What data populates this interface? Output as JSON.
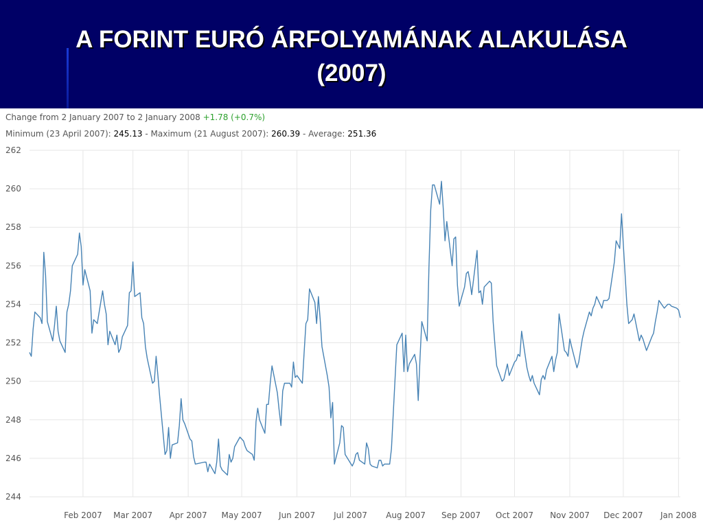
{
  "title": {
    "line1": "A FORINT EURÓ ÁRFOLYAMÁNAK ALAKULÁSA",
    "line2": "(2007)"
  },
  "summary": {
    "change_label": "Change from 2 January 2007 to 2 January 2008",
    "change_value": "+1.78 (+0.7%)",
    "min_label": "Minimum (23 April 2007):",
    "min_value": "245.13",
    "sep1": "-",
    "max_label": "Maximum (21 August 2007):",
    "max_value": "260.39",
    "sep2": "-",
    "avg_label": "Average:",
    "avg_value": "251.36"
  },
  "colors": {
    "title_bar": "#000066",
    "line": "#4682b4",
    "grid": "#e6e6e6",
    "positive": "#2ba02b"
  },
  "chart_data": {
    "type": "line",
    "xlabel": "",
    "ylabel": "",
    "ylim": [
      244,
      262
    ],
    "xlim": [
      "2007-01-02",
      "2008-01-02"
    ],
    "y_ticks": [
      244,
      246,
      248,
      250,
      252,
      254,
      256,
      258,
      260,
      262
    ],
    "x_ticks": [
      {
        "date": "2007-02-01",
        "label": "Feb 2007"
      },
      {
        "date": "2007-03-01",
        "label": "Mar 2007"
      },
      {
        "date": "2007-04-01",
        "label": "Apr 2007"
      },
      {
        "date": "2007-05-01",
        "label": "May 2007"
      },
      {
        "date": "2007-06-01",
        "label": "Jun 2007"
      },
      {
        "date": "2007-07-01",
        "label": "Jul 2007"
      },
      {
        "date": "2007-08-01",
        "label": "Aug 2007"
      },
      {
        "date": "2007-09-01",
        "label": "Sep 2007"
      },
      {
        "date": "2007-10-01",
        "label": "Oct 2007"
      },
      {
        "date": "2007-11-01",
        "label": "Nov 2007"
      },
      {
        "date": "2007-12-01",
        "label": "Dec 2007"
      },
      {
        "date": "2008-01-01",
        "label": "Jan 2008"
      }
    ],
    "grid": true,
    "series": [
      {
        "points": [
          [
            "2007-01-02",
            251.5
          ],
          [
            "2007-01-03",
            251.3
          ],
          [
            "2007-01-04",
            252.7
          ],
          [
            "2007-01-05",
            253.6
          ],
          [
            "2007-01-08",
            253.3
          ],
          [
            "2007-01-09",
            253.0
          ],
          [
            "2007-01-10",
            256.7
          ],
          [
            "2007-01-11",
            255.5
          ],
          [
            "2007-01-12",
            253.1
          ],
          [
            "2007-01-15",
            252.1
          ],
          [
            "2007-01-16",
            252.9
          ],
          [
            "2007-01-17",
            253.9
          ],
          [
            "2007-01-18",
            252.6
          ],
          [
            "2007-01-19",
            252.1
          ],
          [
            "2007-01-22",
            251.5
          ],
          [
            "2007-01-23",
            253.6
          ],
          [
            "2007-01-24",
            254.0
          ],
          [
            "2007-01-25",
            254.7
          ],
          [
            "2007-01-26",
            256.0
          ],
          [
            "2007-01-29",
            256.6
          ],
          [
            "2007-01-30",
            257.7
          ],
          [
            "2007-01-31",
            257.0
          ],
          [
            "2007-02-01",
            255.0
          ],
          [
            "2007-02-02",
            255.8
          ],
          [
            "2007-02-05",
            254.7
          ],
          [
            "2007-02-06",
            252.5
          ],
          [
            "2007-02-07",
            253.2
          ],
          [
            "2007-02-08",
            253.1
          ],
          [
            "2007-02-09",
            253.0
          ],
          [
            "2007-02-12",
            254.7
          ],
          [
            "2007-02-13",
            254.0
          ],
          [
            "2007-02-14",
            253.5
          ],
          [
            "2007-02-15",
            251.9
          ],
          [
            "2007-02-16",
            252.6
          ],
          [
            "2007-02-19",
            251.9
          ],
          [
            "2007-02-20",
            252.4
          ],
          [
            "2007-02-21",
            251.5
          ],
          [
            "2007-02-22",
            251.7
          ],
          [
            "2007-02-23",
            252.3
          ],
          [
            "2007-02-26",
            252.9
          ],
          [
            "2007-02-27",
            254.6
          ],
          [
            "2007-02-28",
            254.7
          ],
          [
            "2007-03-01",
            256.2
          ],
          [
            "2007-03-02",
            254.4
          ],
          [
            "2007-03-05",
            254.6
          ],
          [
            "2007-03-06",
            253.3
          ],
          [
            "2007-03-07",
            253.0
          ],
          [
            "2007-03-08",
            251.8
          ],
          [
            "2007-03-09",
            251.2
          ],
          [
            "2007-03-12",
            249.9
          ],
          [
            "2007-03-13",
            250.0
          ],
          [
            "2007-03-14",
            251.3
          ],
          [
            "2007-03-15",
            250.3
          ],
          [
            "2007-03-16",
            249.2
          ],
          [
            "2007-03-19",
            246.2
          ],
          [
            "2007-03-20",
            246.4
          ],
          [
            "2007-03-21",
            247.6
          ],
          [
            "2007-03-22",
            246.0
          ],
          [
            "2007-03-23",
            246.7
          ],
          [
            "2007-03-26",
            246.8
          ],
          [
            "2007-03-27",
            247.7
          ],
          [
            "2007-03-28",
            249.1
          ],
          [
            "2007-03-29",
            248.0
          ],
          [
            "2007-03-30",
            247.8
          ],
          [
            "2007-04-02",
            247.0
          ],
          [
            "2007-04-03",
            246.9
          ],
          [
            "2007-04-04",
            246.1
          ],
          [
            "2007-04-05",
            245.7
          ],
          [
            "2007-04-10",
            245.8
          ],
          [
            "2007-04-11",
            245.8
          ],
          [
            "2007-04-12",
            245.3
          ],
          [
            "2007-04-13",
            245.7
          ],
          [
            "2007-04-16",
            245.2
          ],
          [
            "2007-04-17",
            245.8
          ],
          [
            "2007-04-18",
            247.0
          ],
          [
            "2007-04-19",
            245.6
          ],
          [
            "2007-04-20",
            245.4
          ],
          [
            "2007-04-23",
            245.13
          ],
          [
            "2007-04-24",
            246.2
          ],
          [
            "2007-04-25",
            245.8
          ],
          [
            "2007-04-26",
            246.0
          ],
          [
            "2007-04-27",
            246.6
          ],
          [
            "2007-04-30",
            247.1
          ],
          [
            "2007-05-02",
            246.9
          ],
          [
            "2007-05-03",
            246.6
          ],
          [
            "2007-05-04",
            246.4
          ],
          [
            "2007-05-07",
            246.2
          ],
          [
            "2007-05-08",
            245.9
          ],
          [
            "2007-05-09",
            247.9
          ],
          [
            "2007-05-10",
            248.6
          ],
          [
            "2007-05-11",
            248.0
          ],
          [
            "2007-05-14",
            247.3
          ],
          [
            "2007-05-15",
            248.8
          ],
          [
            "2007-05-16",
            248.8
          ],
          [
            "2007-05-17",
            249.9
          ],
          [
            "2007-05-18",
            250.8
          ],
          [
            "2007-05-21",
            249.4
          ],
          [
            "2007-05-22",
            248.5
          ],
          [
            "2007-05-23",
            247.7
          ],
          [
            "2007-05-24",
            249.5
          ],
          [
            "2007-05-25",
            249.9
          ],
          [
            "2007-05-28",
            249.9
          ],
          [
            "2007-05-29",
            249.7
          ],
          [
            "2007-05-30",
            251.0
          ],
          [
            "2007-05-31",
            250.2
          ],
          [
            "2007-06-01",
            250.3
          ],
          [
            "2007-06-04",
            249.9
          ],
          [
            "2007-06-05",
            251.5
          ],
          [
            "2007-06-06",
            253.0
          ],
          [
            "2007-06-07",
            253.2
          ],
          [
            "2007-06-08",
            254.8
          ],
          [
            "2007-06-11",
            254.1
          ],
          [
            "2007-06-12",
            253.0
          ],
          [
            "2007-06-13",
            254.4
          ],
          [
            "2007-06-14",
            253.2
          ],
          [
            "2007-06-15",
            251.8
          ],
          [
            "2007-06-18",
            250.3
          ],
          [
            "2007-06-19",
            249.7
          ],
          [
            "2007-06-20",
            248.1
          ],
          [
            "2007-06-21",
            248.9
          ],
          [
            "2007-06-22",
            245.7
          ],
          [
            "2007-06-25",
            246.8
          ],
          [
            "2007-06-26",
            247.7
          ],
          [
            "2007-06-27",
            247.6
          ],
          [
            "2007-06-28",
            246.2
          ],
          [
            "2007-07-02",
            245.6
          ],
          [
            "2007-07-03",
            245.8
          ],
          [
            "2007-07-04",
            246.2
          ],
          [
            "2007-07-05",
            246.3
          ],
          [
            "2007-07-06",
            245.9
          ],
          [
            "2007-07-09",
            245.7
          ],
          [
            "2007-07-10",
            246.8
          ],
          [
            "2007-07-11",
            246.5
          ],
          [
            "2007-07-12",
            245.7
          ],
          [
            "2007-07-13",
            245.6
          ],
          [
            "2007-07-16",
            245.5
          ],
          [
            "2007-07-17",
            245.9
          ],
          [
            "2007-07-18",
            245.9
          ],
          [
            "2007-07-19",
            245.6
          ],
          [
            "2007-07-20",
            245.7
          ],
          [
            "2007-07-23",
            245.7
          ],
          [
            "2007-07-24",
            246.5
          ],
          [
            "2007-07-27",
            251.9
          ],
          [
            "2007-07-30",
            252.5
          ],
          [
            "2007-07-31",
            250.5
          ],
          [
            "2007-08-01",
            252.4
          ],
          [
            "2007-08-02",
            250.5
          ],
          [
            "2007-08-03",
            250.9
          ],
          [
            "2007-08-06",
            251.4
          ],
          [
            "2007-08-07",
            250.9
          ],
          [
            "2007-08-08",
            249.0
          ],
          [
            "2007-08-09",
            251.2
          ],
          [
            "2007-08-10",
            253.1
          ],
          [
            "2007-08-13",
            252.1
          ],
          [
            "2007-08-14",
            255.9
          ],
          [
            "2007-08-15",
            258.9
          ],
          [
            "2007-08-16",
            260.2
          ],
          [
            "2007-08-17",
            260.2
          ],
          [
            "2007-08-20",
            259.2
          ],
          [
            "2007-08-21",
            260.39
          ],
          [
            "2007-08-22",
            259.0
          ],
          [
            "2007-08-23",
            257.3
          ],
          [
            "2007-08-24",
            258.3
          ],
          [
            "2007-08-27",
            256.0
          ],
          [
            "2007-08-28",
            257.4
          ],
          [
            "2007-08-29",
            257.5
          ],
          [
            "2007-08-30",
            255.0
          ],
          [
            "2007-08-31",
            253.9
          ],
          [
            "2007-09-03",
            254.9
          ],
          [
            "2007-09-04",
            255.6
          ],
          [
            "2007-09-05",
            255.7
          ],
          [
            "2007-09-06",
            255.2
          ],
          [
            "2007-09-07",
            254.5
          ],
          [
            "2007-09-10",
            256.8
          ],
          [
            "2007-09-11",
            254.6
          ],
          [
            "2007-09-12",
            254.7
          ],
          [
            "2007-09-13",
            254.0
          ],
          [
            "2007-09-14",
            254.9
          ],
          [
            "2007-09-17",
            255.2
          ],
          [
            "2007-09-18",
            255.1
          ],
          [
            "2007-09-19",
            253.1
          ],
          [
            "2007-09-20",
            251.9
          ],
          [
            "2007-09-21",
            250.8
          ],
          [
            "2007-09-24",
            250.0
          ],
          [
            "2007-09-25",
            250.1
          ],
          [
            "2007-09-26",
            250.5
          ],
          [
            "2007-09-27",
            250.9
          ],
          [
            "2007-09-28",
            250.3
          ],
          [
            "2007-10-01",
            251.0
          ],
          [
            "2007-10-02",
            251.1
          ],
          [
            "2007-10-03",
            251.4
          ],
          [
            "2007-10-04",
            251.3
          ],
          [
            "2007-10-05",
            252.6
          ],
          [
            "2007-10-08",
            250.7
          ],
          [
            "2007-10-09",
            250.3
          ],
          [
            "2007-10-10",
            250.0
          ],
          [
            "2007-10-11",
            250.3
          ],
          [
            "2007-10-12",
            249.9
          ],
          [
            "2007-10-15",
            249.3
          ],
          [
            "2007-10-16",
            250.1
          ],
          [
            "2007-10-17",
            250.3
          ],
          [
            "2007-10-18",
            250.1
          ],
          [
            "2007-10-19",
            250.6
          ],
          [
            "2007-10-22",
            251.3
          ],
          [
            "2007-10-23",
            250.5
          ],
          [
            "2007-10-24",
            251.1
          ],
          [
            "2007-10-25",
            251.5
          ],
          [
            "2007-10-26",
            253.5
          ],
          [
            "2007-10-29",
            251.6
          ],
          [
            "2007-10-30",
            251.5
          ],
          [
            "2007-10-31",
            251.3
          ],
          [
            "2007-11-01",
            252.2
          ],
          [
            "2007-11-02",
            251.8
          ],
          [
            "2007-11-05",
            250.7
          ],
          [
            "2007-11-06",
            251.0
          ],
          [
            "2007-11-07",
            251.6
          ],
          [
            "2007-11-08",
            252.2
          ],
          [
            "2007-11-09",
            252.6
          ],
          [
            "2007-11-12",
            253.6
          ],
          [
            "2007-11-13",
            253.4
          ],
          [
            "2007-11-14",
            253.8
          ],
          [
            "2007-11-15",
            254.0
          ],
          [
            "2007-11-16",
            254.4
          ],
          [
            "2007-11-19",
            253.8
          ],
          [
            "2007-11-20",
            254.2
          ],
          [
            "2007-11-21",
            254.2
          ],
          [
            "2007-11-22",
            254.2
          ],
          [
            "2007-11-23",
            254.3
          ],
          [
            "2007-11-26",
            256.2
          ],
          [
            "2007-11-27",
            257.3
          ],
          [
            "2007-11-28",
            257.1
          ],
          [
            "2007-11-29",
            256.9
          ],
          [
            "2007-11-30",
            258.7
          ],
          [
            "2007-12-03",
            254.0
          ],
          [
            "2007-12-04",
            253.0
          ],
          [
            "2007-12-05",
            253.1
          ],
          [
            "2007-12-06",
            253.2
          ],
          [
            "2007-12-07",
            253.5
          ],
          [
            "2007-12-10",
            252.1
          ],
          [
            "2007-12-11",
            252.4
          ],
          [
            "2007-12-12",
            252.2
          ],
          [
            "2007-12-13",
            251.9
          ],
          [
            "2007-12-14",
            251.6
          ],
          [
            "2007-12-17",
            252.3
          ],
          [
            "2007-12-18",
            252.5
          ],
          [
            "2007-12-19",
            253.1
          ],
          [
            "2007-12-20",
            253.6
          ],
          [
            "2007-12-21",
            254.2
          ],
          [
            "2007-12-24",
            253.8
          ],
          [
            "2007-12-25",
            253.9
          ],
          [
            "2007-12-26",
            254.0
          ],
          [
            "2007-12-27",
            254.0
          ],
          [
            "2007-12-28",
            253.9
          ],
          [
            "2007-12-31",
            253.8
          ],
          [
            "2008-01-01",
            253.7
          ],
          [
            "2008-01-02",
            253.3
          ]
        ]
      }
    ]
  }
}
